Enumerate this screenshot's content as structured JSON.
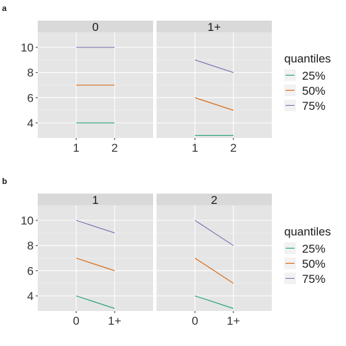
{
  "colors": {
    "panel_bg": "#E5E5E5",
    "strip_bg": "#D9D9D9",
    "grid_major": "#FFFFFF",
    "grid_minor": "#F2F2F2",
    "q25": "#1B9E77",
    "q50": "#D95F02",
    "q75": "#7570B3"
  },
  "chart_data": [
    {
      "tag": "a",
      "type": "line",
      "facets": [
        "0",
        "1+"
      ],
      "x": [
        "1",
        "2"
      ],
      "y_ticks": [
        4,
        6,
        8,
        10
      ],
      "ylim": [
        2.8,
        11.2
      ],
      "legend": {
        "title": "quantiles",
        "position": "right",
        "entries": [
          "25%",
          "50%",
          "75%"
        ]
      },
      "panels": [
        {
          "facet": "0",
          "series": [
            {
              "name": "25%",
              "values": [
                4,
                4
              ]
            },
            {
              "name": "50%",
              "values": [
                7,
                7
              ]
            },
            {
              "name": "75%",
              "values": [
                10,
                10
              ]
            }
          ]
        },
        {
          "facet": "1+",
          "series": [
            {
              "name": "25%",
              "values": [
                3,
                3
              ]
            },
            {
              "name": "50%",
              "values": [
                6,
                5
              ]
            },
            {
              "name": "75%",
              "values": [
                9,
                8
              ]
            }
          ]
        }
      ]
    },
    {
      "tag": "b",
      "type": "line",
      "facets": [
        "1",
        "2"
      ],
      "x": [
        "0",
        "1+"
      ],
      "y_ticks": [
        4,
        6,
        8,
        10
      ],
      "ylim": [
        2.8,
        11.2
      ],
      "legend": {
        "title": "quantiles",
        "position": "right",
        "entries": [
          "25%",
          "50%",
          "75%"
        ]
      },
      "panels": [
        {
          "facet": "1",
          "series": [
            {
              "name": "25%",
              "values": [
                4,
                3
              ]
            },
            {
              "name": "50%",
              "values": [
                7,
                6
              ]
            },
            {
              "name": "75%",
              "values": [
                10,
                9
              ]
            }
          ]
        },
        {
          "facet": "2",
          "series": [
            {
              "name": "25%",
              "values": [
                4,
                3
              ]
            },
            {
              "name": "50%",
              "values": [
                7,
                5
              ]
            },
            {
              "name": "75%",
              "values": [
                10,
                8
              ]
            }
          ]
        }
      ]
    }
  ]
}
